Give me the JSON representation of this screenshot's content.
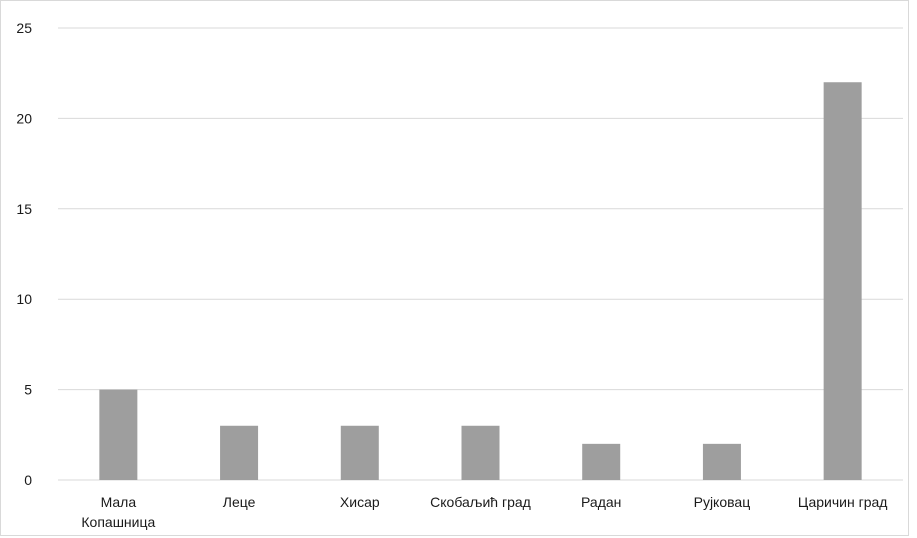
{
  "chart_data": {
    "type": "bar",
    "categories": [
      "Мала Копашница",
      "Леце",
      "Хисар",
      "Скобаљић град",
      "Радан",
      "Рујковац",
      "Царичин град"
    ],
    "category_lines": [
      [
        "Мала",
        "Копашница"
      ],
      [
        "Леце"
      ],
      [
        "Хисар"
      ],
      [
        "Скобаљић град"
      ],
      [
        "Радан"
      ],
      [
        "Рујковац"
      ],
      [
        "Царичин град"
      ]
    ],
    "values": [
      5,
      3,
      3,
      3,
      2,
      2,
      22
    ],
    "ylim": [
      0,
      25
    ],
    "yticks": [
      "0",
      "5",
      "10",
      "15",
      "20",
      "25"
    ],
    "grid": true,
    "bar_color": "#9e9e9e",
    "grid_color": "#d9d9d9"
  }
}
